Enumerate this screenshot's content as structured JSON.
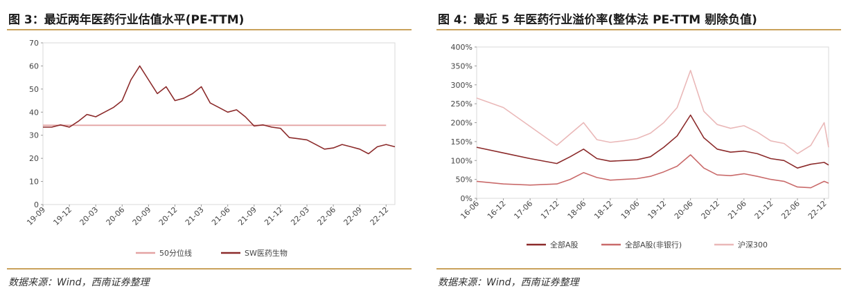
{
  "left": {
    "title": "图 3：最近两年医药行业估值水平(PE-TTM)",
    "source": "数据来源：Wind，西南证券整理"
  },
  "right": {
    "title": "图 4：最近 5 年医药行业溢价率(整体法 PE-TTM 剔除负值)",
    "source": "数据来源：Wind，西南证券整理"
  },
  "chart_data": [
    {
      "type": "line",
      "title": "",
      "ylim": [
        0,
        70
      ],
      "yticks": [
        "70",
        "60",
        "50",
        "40",
        "30",
        "20",
        "10",
        "0"
      ],
      "xticks": [
        "19-09",
        "19-12",
        "20-03",
        "20-06",
        "20-09",
        "20-12",
        "21-03",
        "21-06",
        "21-09",
        "21-12",
        "22-03",
        "22-06",
        "22-09",
        "22-12"
      ],
      "legend_position": "bottom",
      "series": [
        {
          "name": "50分位线",
          "color": "#e4a3a3",
          "x": [
            "19-09",
            "22-12"
          ],
          "values": [
            34.3,
            34.3
          ]
        },
        {
          "name": "SW医药生物",
          "color": "#8b2a2a",
          "x": [
            "19-09",
            "19-10",
            "19-11",
            "19-12",
            "20-01",
            "20-02",
            "20-03",
            "20-04",
            "20-05",
            "20-06",
            "20-07",
            "20-08",
            "20-09",
            "20-10",
            "20-11",
            "20-12",
            "21-01",
            "21-02",
            "21-03",
            "21-04",
            "21-05",
            "21-06",
            "21-07",
            "21-08",
            "21-09",
            "21-10",
            "21-11",
            "21-12",
            "22-01",
            "22-02",
            "22-03",
            "22-04",
            "22-05",
            "22-06",
            "22-07",
            "22-08",
            "22-09",
            "22-10",
            "22-11",
            "22-12",
            "23-01"
          ],
          "values": [
            33.5,
            33.5,
            34.5,
            33.5,
            36,
            39,
            38,
            40,
            42,
            45,
            54,
            60,
            54,
            48,
            51,
            45,
            46,
            48,
            51,
            44,
            42,
            40,
            41,
            38,
            34,
            34.5,
            33.5,
            33,
            29,
            28.5,
            28,
            26,
            24,
            24.5,
            26,
            25,
            24,
            22,
            25,
            26,
            25
          ]
        }
      ]
    },
    {
      "type": "line",
      "title": "",
      "ylim": [
        0,
        400
      ],
      "yticks": [
        "400%",
        "350%",
        "300%",
        "250%",
        "200%",
        "150%",
        "100%",
        "50%",
        "0%"
      ],
      "xticks": [
        "16-06",
        "16-12",
        "17-06",
        "17-12",
        "18-06",
        "18-12",
        "19-06",
        "19-12",
        "20-06",
        "20-12",
        "21-06",
        "21-12",
        "22-06",
        "22-12"
      ],
      "legend_position": "bottom",
      "series": [
        {
          "name": "全部A股",
          "color": "#8b2a2a",
          "x": [
            "16-06",
            "16-12",
            "17-06",
            "17-12",
            "18-03",
            "18-06",
            "18-09",
            "18-12",
            "19-03",
            "19-06",
            "19-09",
            "19-12",
            "20-03",
            "20-06",
            "20-09",
            "20-12",
            "21-03",
            "21-06",
            "21-09",
            "21-12",
            "22-03",
            "22-06",
            "22-09",
            "22-12",
            "23-01"
          ],
          "values": [
            135,
            120,
            105,
            92,
            110,
            130,
            105,
            98,
            100,
            102,
            110,
            135,
            165,
            220,
            160,
            130,
            122,
            125,
            118,
            105,
            100,
            80,
            90,
            95,
            88
          ]
        },
        {
          "name": "全部A股(非银行)",
          "color": "#c96a6a",
          "x": [
            "16-06",
            "16-12",
            "17-06",
            "17-12",
            "18-03",
            "18-06",
            "18-09",
            "18-12",
            "19-03",
            "19-06",
            "19-09",
            "19-12",
            "20-03",
            "20-06",
            "20-09",
            "20-12",
            "21-03",
            "21-06",
            "21-09",
            "21-12",
            "22-03",
            "22-06",
            "22-09",
            "22-12",
            "23-01"
          ],
          "values": [
            45,
            38,
            35,
            38,
            50,
            68,
            55,
            48,
            50,
            52,
            58,
            70,
            85,
            115,
            80,
            62,
            60,
            65,
            58,
            50,
            45,
            30,
            28,
            45,
            40
          ]
        },
        {
          "name": "沪深300",
          "color": "#eab8b8",
          "x": [
            "16-06",
            "16-12",
            "17-06",
            "17-12",
            "18-03",
            "18-06",
            "18-09",
            "18-12",
            "19-03",
            "19-06",
            "19-09",
            "19-12",
            "20-03",
            "20-06",
            "20-09",
            "20-12",
            "21-03",
            "21-06",
            "21-09",
            "21-12",
            "22-03",
            "22-06",
            "22-09",
            "22-12",
            "23-01"
          ],
          "values": [
            265,
            240,
            190,
            140,
            170,
            200,
            155,
            148,
            152,
            158,
            172,
            200,
            240,
            338,
            230,
            195,
            185,
            192,
            175,
            152,
            145,
            118,
            140,
            200,
            135
          ]
        }
      ]
    }
  ]
}
